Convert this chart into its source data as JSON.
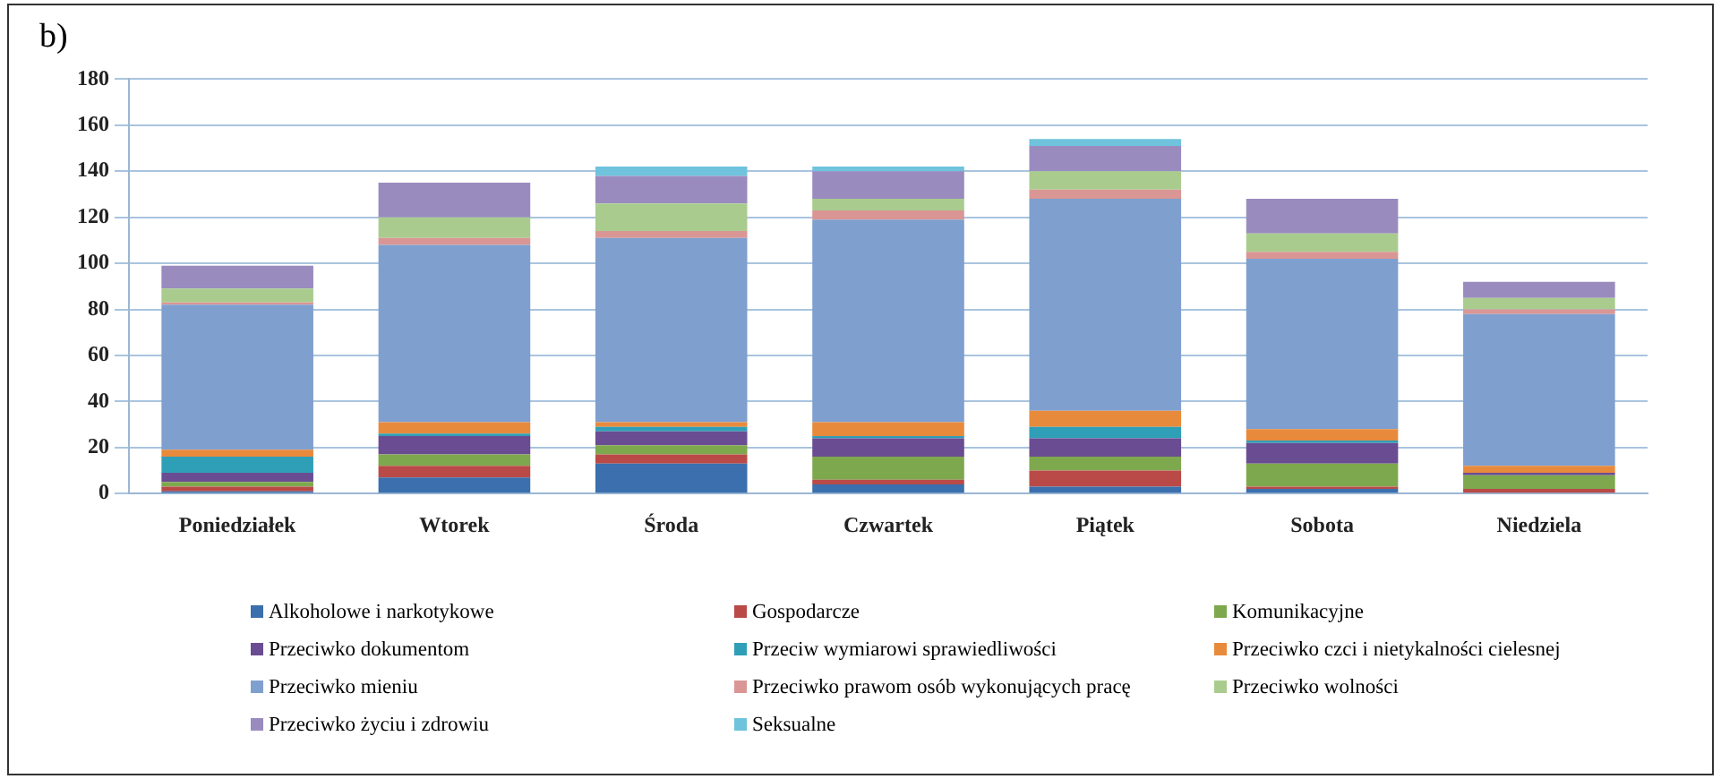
{
  "chart_data": {
    "type": "bar",
    "title": "b)",
    "stacked": true,
    "grid": "y",
    "legend": "bottom",
    "categories": [
      "Poniedziałek",
      "Wtorek",
      "Środa",
      "Czwartek",
      "Piątek",
      "Sobota",
      "Niedziela"
    ],
    "ylim": [
      0,
      180
    ],
    "yticks": [
      0,
      20,
      40,
      60,
      80,
      100,
      120,
      140,
      160,
      180
    ],
    "series": [
      {
        "name": "Alkoholowe i narkotykowe",
        "color": "#3b6fad",
        "values": [
          1,
          7,
          13,
          4,
          3,
          2,
          0
        ]
      },
      {
        "name": "Gospodarcze",
        "color": "#b94a48",
        "values": [
          2,
          5,
          4,
          2,
          7,
          1,
          2
        ]
      },
      {
        "name": "Komunikacyjne",
        "color": "#7ea84d",
        "values": [
          2,
          5,
          4,
          10,
          6,
          10,
          6
        ]
      },
      {
        "name": "Przeciwko dokumentom",
        "color": "#6a4c93",
        "values": [
          4,
          8,
          6,
          8,
          8,
          9,
          1
        ]
      },
      {
        "name": "Przeciw wymiarowi sprawiedliwości",
        "color": "#2f9fb7",
        "values": [
          7,
          1,
          2,
          1,
          5,
          1,
          0
        ]
      },
      {
        "name": "Przeciwko czci i nietykalności cielesnej",
        "color": "#e88a3c",
        "values": [
          3,
          5,
          2,
          6,
          7,
          5,
          3
        ]
      },
      {
        "name": "Przeciwko mieniu",
        "color": "#7f9fcf",
        "values": [
          63,
          77,
          80,
          88,
          92,
          74,
          66
        ]
      },
      {
        "name": "Przeciwko prawom osób wykonujących pracę",
        "color": "#d99694",
        "values": [
          1,
          3,
          3,
          4,
          4,
          3,
          2
        ]
      },
      {
        "name": "Przeciwko wolności",
        "color": "#a9cc8e",
        "values": [
          6,
          9,
          12,
          5,
          8,
          8,
          5
        ]
      },
      {
        "name": "Przeciwko życiu i zdrowiu",
        "color": "#9a8bbf",
        "values": [
          10,
          15,
          12,
          12,
          11,
          15,
          7
        ]
      },
      {
        "name": "Seksualne",
        "color": "#6fc3dc",
        "values": [
          0,
          0,
          4,
          2,
          3,
          0,
          0
        ]
      }
    ]
  }
}
